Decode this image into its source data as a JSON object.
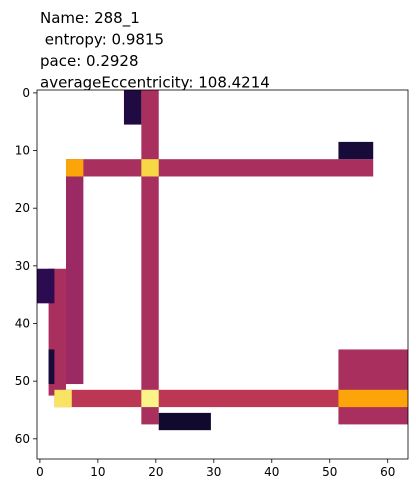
{
  "chart_data": {
    "type": "heatmap",
    "title_lines": [
      "Name: 288_1",
      " entropy: 0.9815",
      "pace: 0.2928",
      "averageEccentricity: 108.4214"
    ],
    "colormap": "inferno",
    "xlim": [
      -0.5,
      63.5
    ],
    "ylim": [
      63.5,
      -0.5
    ],
    "xticks": [
      0,
      10,
      20,
      30,
      40,
      50,
      60
    ],
    "yticks": [
      0,
      10,
      20,
      30,
      40,
      50,
      60
    ],
    "regions": [
      {
        "rows": [
          45,
          57
        ],
        "cols": [
          52,
          63
        ],
        "value": 0.45
      },
      {
        "rows": [
          31,
          52
        ],
        "cols": [
          2,
          4
        ],
        "value": 0.45
      },
      {
        "rows": [
          15,
          50
        ],
        "cols": [
          5,
          7
        ],
        "value": 0.42
      },
      {
        "rows": [
          0,
          57
        ],
        "cols": [
          18,
          20
        ],
        "value": 0.45
      },
      {
        "rows": [
          12,
          14
        ],
        "cols": [
          5,
          57
        ],
        "value": 0.45
      },
      {
        "rows": [
          12,
          14
        ],
        "cols": [
          5,
          7
        ],
        "value": 0.8
      },
      {
        "rows": [
          12,
          14
        ],
        "cols": [
          18,
          20
        ],
        "value": 0.9
      },
      {
        "rows": [
          52,
          54
        ],
        "cols": [
          3,
          63
        ],
        "value": 0.5
      },
      {
        "rows": [
          52,
          54
        ],
        "cols": [
          52,
          63
        ],
        "value": 0.8
      },
      {
        "rows": [
          52,
          54
        ],
        "cols": [
          3,
          5
        ],
        "value": 0.93
      },
      {
        "rows": [
          52,
          54
        ],
        "cols": [
          18,
          20
        ],
        "value": 0.97
      },
      {
        "rows": [
          0,
          5
        ],
        "cols": [
          15,
          17
        ],
        "value": 0.12
      },
      {
        "rows": [
          9,
          11
        ],
        "cols": [
          52,
          57
        ],
        "value": 0.1
      },
      {
        "rows": [
          31,
          36
        ],
        "cols": [
          0,
          2
        ],
        "value": 0.15
      },
      {
        "rows": [
          45,
          50
        ],
        "cols": [
          2,
          2
        ],
        "value": 0.1
      },
      {
        "rows": [
          56,
          58
        ],
        "cols": [
          21,
          29
        ],
        "value": 0.08
      }
    ]
  }
}
